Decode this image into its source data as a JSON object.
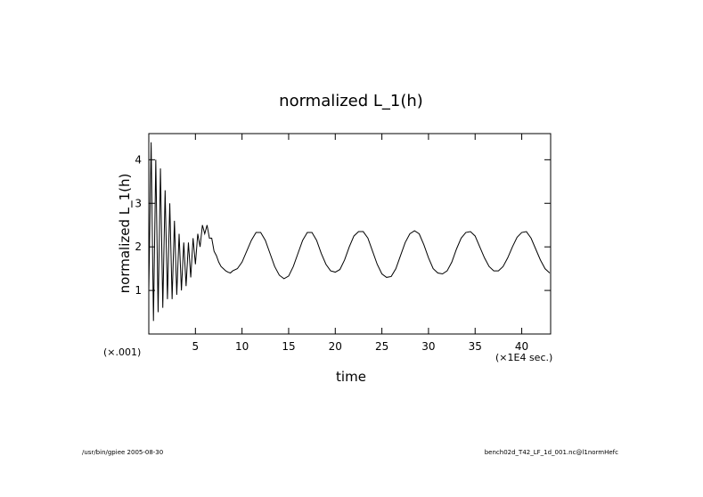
{
  "chart_data": {
    "type": "line",
    "title": "normalized L_1(h)",
    "xlabel": "time",
    "ylabel": "normalized L_1(h)",
    "annotations": [
      "(×.001)",
      "(×1E4 sec.)"
    ],
    "color": "#000000",
    "x": [
      0,
      0.25,
      0.5,
      0.75,
      1.0,
      1.25,
      1.5,
      1.75,
      2.0,
      2.25,
      2.5,
      2.75,
      3.0,
      3.25,
      3.5,
      3.75,
      4.0,
      4.25,
      4.5,
      4.75,
      5.0,
      5.25,
      5.5,
      5.75,
      6.0,
      6.25,
      6.5,
      6.75,
      7.0,
      7.25,
      7.5,
      7.75,
      8.0,
      8.25,
      8.5,
      8.75,
      9.0,
      9.5,
      10,
      10.5,
      11,
      11.5,
      12,
      12.5,
      13,
      13.5,
      14,
      14.5,
      15,
      15.5,
      16,
      16.5,
      17,
      17.5,
      18,
      18.5,
      19,
      19.5,
      20,
      20.5,
      21,
      21.5,
      22,
      22.5,
      23,
      23.5,
      24,
      24.5,
      25,
      25.5,
      26,
      26.5,
      27,
      27.5,
      28,
      28.5,
      29,
      29.5,
      30,
      30.5,
      31,
      31.5,
      32,
      32.5,
      33,
      33.5,
      34,
      34.5,
      35,
      35.5,
      36,
      36.5,
      37,
      37.5,
      38,
      38.5,
      39,
      39.5,
      40,
      40.5,
      41,
      41.5,
      42,
      42.5,
      43
    ],
    "values": [
      1.0,
      4.4,
      0.3,
      4.0,
      0.5,
      3.8,
      0.6,
      3.3,
      0.8,
      3.0,
      0.8,
      2.6,
      0.9,
      2.3,
      1.0,
      2.1,
      1.1,
      2.1,
      1.3,
      2.2,
      1.6,
      2.3,
      2.0,
      2.5,
      2.3,
      2.5,
      2.2,
      2.2,
      1.9,
      1.8,
      1.65,
      1.55,
      1.5,
      1.45,
      1.42,
      1.4,
      1.45,
      1.5,
      1.65,
      1.9,
      2.15,
      2.33,
      2.33,
      2.15,
      1.85,
      1.55,
      1.35,
      1.27,
      1.33,
      1.55,
      1.85,
      2.15,
      2.33,
      2.33,
      2.15,
      1.85,
      1.6,
      1.45,
      1.42,
      1.48,
      1.7,
      2.0,
      2.25,
      2.35,
      2.35,
      2.2,
      1.9,
      1.6,
      1.38,
      1.3,
      1.32,
      1.5,
      1.8,
      2.1,
      2.3,
      2.37,
      2.3,
      2.05,
      1.75,
      1.5,
      1.4,
      1.38,
      1.45,
      1.65,
      1.95,
      2.2,
      2.33,
      2.35,
      2.25,
      2.0,
      1.75,
      1.55,
      1.45,
      1.45,
      1.55,
      1.75,
      2.0,
      2.22,
      2.33,
      2.35,
      2.2,
      1.95,
      1.7,
      1.5,
      1.4
    ],
    "xlim": [
      0,
      43.1
    ],
    "ylim": [
      0,
      4.6
    ],
    "xticks": [
      5,
      10,
      15,
      20,
      25,
      30,
      35,
      40
    ],
    "yticks": [
      1,
      2,
      3,
      4
    ]
  },
  "footer": {
    "left": "/usr/bin/gpiee  2005-08-30",
    "right": "bench02d_T42_LF_1d_001.nc@l1normHefc"
  }
}
